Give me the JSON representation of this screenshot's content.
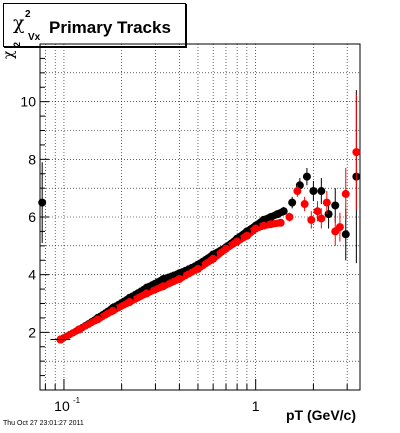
{
  "title": {
    "symbol": "χ",
    "superscript": "2",
    "subscript": "Vx",
    "text": "Primary Tracks"
  },
  "footer": "Thu Oct 27 23:01:27 2011",
  "chart_data": {
    "type": "scatter",
    "title": "Primary Tracks",
    "xlabel": "pT (GeV/c)",
    "ylabel_symbol": "χ",
    "ylabel_superscript": "2",
    "xscale": "log",
    "xlim": [
      0.075,
      3.5
    ],
    "ylim": [
      0,
      12
    ],
    "grid": true,
    "x_tick_labels": [
      {
        "value": 0.1,
        "base": "10",
        "exp": "-1"
      },
      {
        "value": 1,
        "base": "1",
        "exp": ""
      }
    ],
    "y_tick_labels": [
      {
        "value": 2,
        "label": "2"
      },
      {
        "value": 4,
        "label": "4"
      },
      {
        "value": 6,
        "label": "6"
      },
      {
        "value": 8,
        "label": "8"
      },
      {
        "value": 10,
        "label": "10"
      }
    ],
    "colors": {
      "black_series": "#000000",
      "red_series": "#ff0000"
    },
    "series": [
      {
        "color": "black",
        "points": [
          {
            "x": 0.077,
            "y": 6.5,
            "yerr": 1.4
          },
          {
            "x": 0.096,
            "y": 1.75,
            "yerr": 0.04
          },
          {
            "x": 0.12,
            "y": 2.1,
            "yerr": 0.04
          },
          {
            "x": 0.15,
            "y": 2.5,
            "yerr": 0.04
          },
          {
            "x": 0.18,
            "y": 2.85,
            "yerr": 0.04
          },
          {
            "x": 0.22,
            "y": 3.2,
            "yerr": 0.04
          },
          {
            "x": 0.27,
            "y": 3.55,
            "yerr": 0.04
          },
          {
            "x": 0.33,
            "y": 3.85,
            "yerr": 0.04
          },
          {
            "x": 0.4,
            "y": 4.05,
            "yerr": 0.04
          },
          {
            "x": 0.5,
            "y": 4.35,
            "yerr": 0.05
          },
          {
            "x": 0.6,
            "y": 4.7,
            "yerr": 0.05
          },
          {
            "x": 0.7,
            "y": 4.95,
            "yerr": 0.05
          },
          {
            "x": 0.8,
            "y": 5.25,
            "yerr": 0.06
          },
          {
            "x": 0.9,
            "y": 5.5,
            "yerr": 0.06
          },
          {
            "x": 1.0,
            "y": 5.7,
            "yerr": 0.07
          },
          {
            "x": 1.1,
            "y": 5.9,
            "yerr": 0.08
          },
          {
            "x": 1.2,
            "y": 6.0,
            "yerr": 0.1
          },
          {
            "x": 1.3,
            "y": 6.1,
            "yerr": 0.12
          },
          {
            "x": 1.4,
            "y": 6.2,
            "yerr": 0.15
          },
          {
            "x": 1.55,
            "y": 6.5,
            "yerr": 0.2
          },
          {
            "x": 1.7,
            "y": 7.1,
            "yerr": 0.25
          },
          {
            "x": 1.85,
            "y": 7.4,
            "yerr": 0.3
          },
          {
            "x": 2.0,
            "y": 6.9,
            "yerr": 0.35
          },
          {
            "x": 2.2,
            "y": 6.9,
            "yerr": 0.45
          },
          {
            "x": 2.4,
            "y": 6.1,
            "yerr": 0.5
          },
          {
            "x": 2.6,
            "y": 6.4,
            "yerr": 0.6
          },
          {
            "x": 2.95,
            "y": 5.4,
            "yerr": 0.9
          },
          {
            "x": 3.35,
            "y": 7.4,
            "yerr": 3.0
          }
        ]
      },
      {
        "color": "red",
        "points": [
          {
            "x": 0.096,
            "y": 1.75,
            "yerr": 0.04
          },
          {
            "x": 0.12,
            "y": 2.1,
            "yerr": 0.04
          },
          {
            "x": 0.15,
            "y": 2.45,
            "yerr": 0.04
          },
          {
            "x": 0.18,
            "y": 2.75,
            "yerr": 0.04
          },
          {
            "x": 0.22,
            "y": 3.05,
            "yerr": 0.04
          },
          {
            "x": 0.27,
            "y": 3.35,
            "yerr": 0.04
          },
          {
            "x": 0.33,
            "y": 3.6,
            "yerr": 0.04
          },
          {
            "x": 0.4,
            "y": 3.85,
            "yerr": 0.04
          },
          {
            "x": 0.5,
            "y": 4.2,
            "yerr": 0.05
          },
          {
            "x": 0.6,
            "y": 4.55,
            "yerr": 0.05
          },
          {
            "x": 0.7,
            "y": 4.9,
            "yerr": 0.05
          },
          {
            "x": 0.8,
            "y": 5.15,
            "yerr": 0.06
          },
          {
            "x": 0.9,
            "y": 5.35,
            "yerr": 0.06
          },
          {
            "x": 1.0,
            "y": 5.6,
            "yerr": 0.07
          },
          {
            "x": 1.1,
            "y": 5.7,
            "yerr": 0.08
          },
          {
            "x": 1.2,
            "y": 5.75,
            "yerr": 0.1
          },
          {
            "x": 1.35,
            "y": 5.8,
            "yerr": 0.12
          },
          {
            "x": 1.5,
            "y": 6.0,
            "yerr": 0.15
          },
          {
            "x": 1.65,
            "y": 6.9,
            "yerr": 0.2
          },
          {
            "x": 1.8,
            "y": 6.45,
            "yerr": 0.25
          },
          {
            "x": 1.95,
            "y": 5.9,
            "yerr": 0.3
          },
          {
            "x": 2.1,
            "y": 6.2,
            "yerr": 0.35
          },
          {
            "x": 2.2,
            "y": 5.95,
            "yerr": 0.35
          },
          {
            "x": 2.35,
            "y": 6.5,
            "yerr": 0.4
          },
          {
            "x": 2.6,
            "y": 5.5,
            "yerr": 0.5
          },
          {
            "x": 2.75,
            "y": 5.65,
            "yerr": 0.5
          },
          {
            "x": 2.95,
            "y": 6.8,
            "yerr": 0.9
          },
          {
            "x": 3.35,
            "y": 8.25,
            "yerr": 2.0
          }
        ]
      }
    ]
  }
}
